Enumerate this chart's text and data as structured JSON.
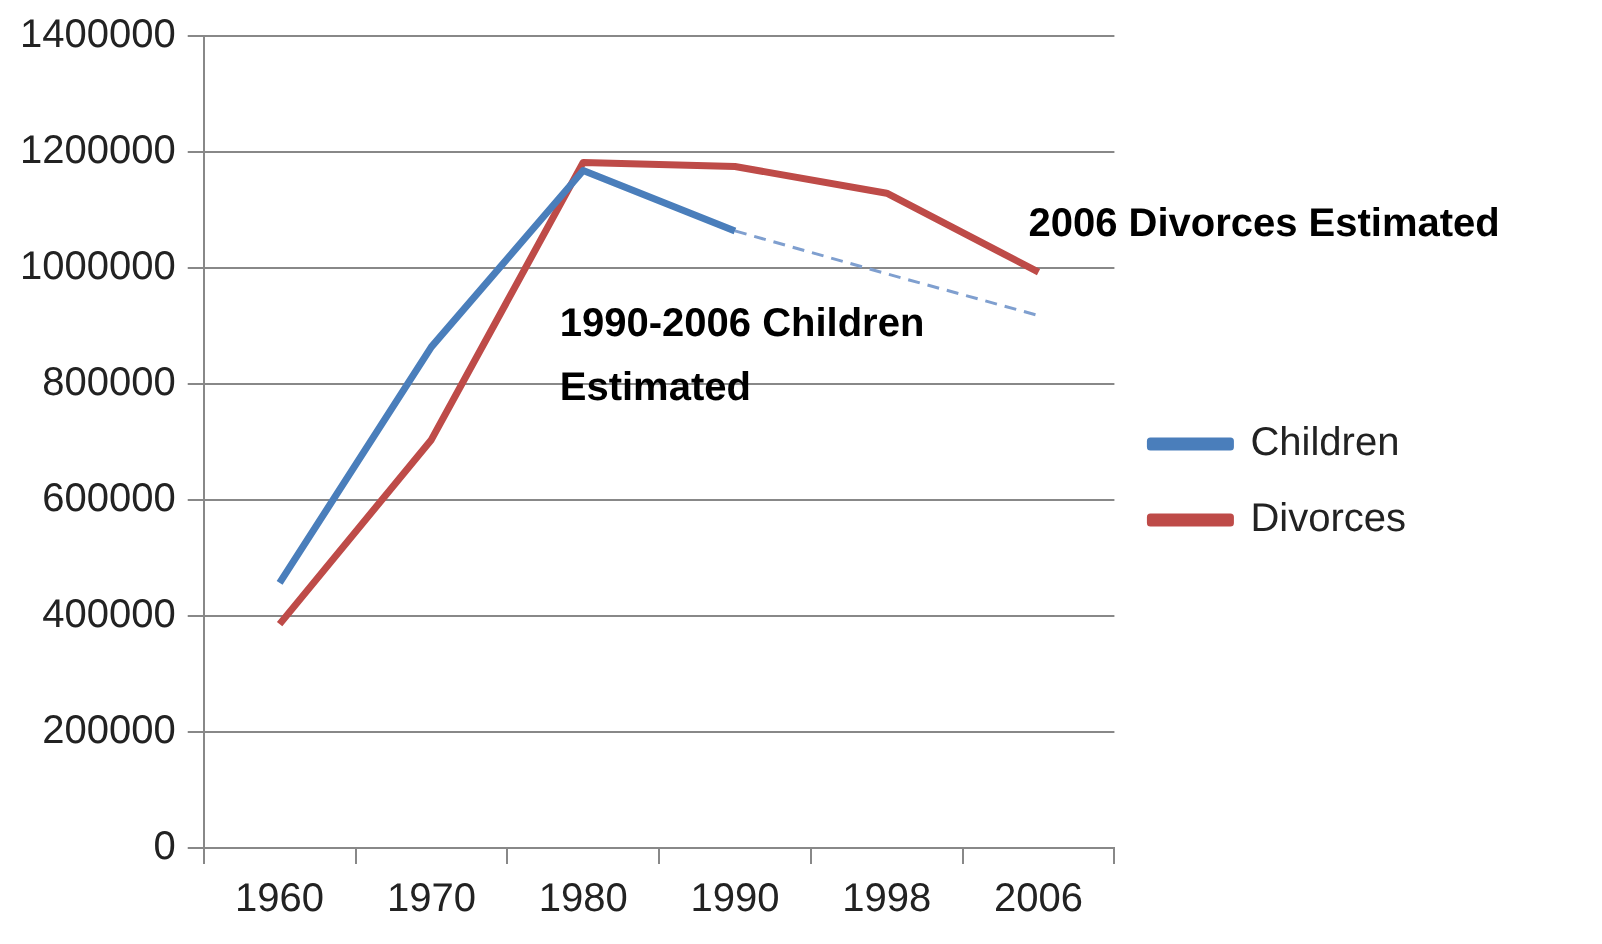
{
  "chart_data": {
    "type": "line",
    "categories": [
      "1960",
      "1970",
      "1980",
      "1990",
      "1998",
      "2006"
    ],
    "series": [
      {
        "name": "Children",
        "color": "#4a7ebb",
        "values": [
          457000,
          864000,
          1168000,
          1064000,
          null,
          null
        ]
      },
      {
        "name": "Divorces",
        "color": "#be4b48",
        "values": [
          386000,
          704000,
          1182000,
          1175000,
          1129000,
          993000
        ]
      },
      {
        "color": "#7f9fcf",
        "line_style": "dashed",
        "values": [
          null,
          null,
          null,
          1064000,
          990000,
          918000
        ]
      }
    ],
    "ylim": [
      0,
      1400000
    ],
    "yticks": [
      0,
      200000,
      400000,
      600000,
      800000,
      1000000,
      1200000,
      1400000
    ],
    "grid": "y",
    "legend": "right",
    "marker": "none",
    "annotations": [
      "2006 Divorces Estimated",
      "1990-2006 Children Estimated"
    ]
  }
}
